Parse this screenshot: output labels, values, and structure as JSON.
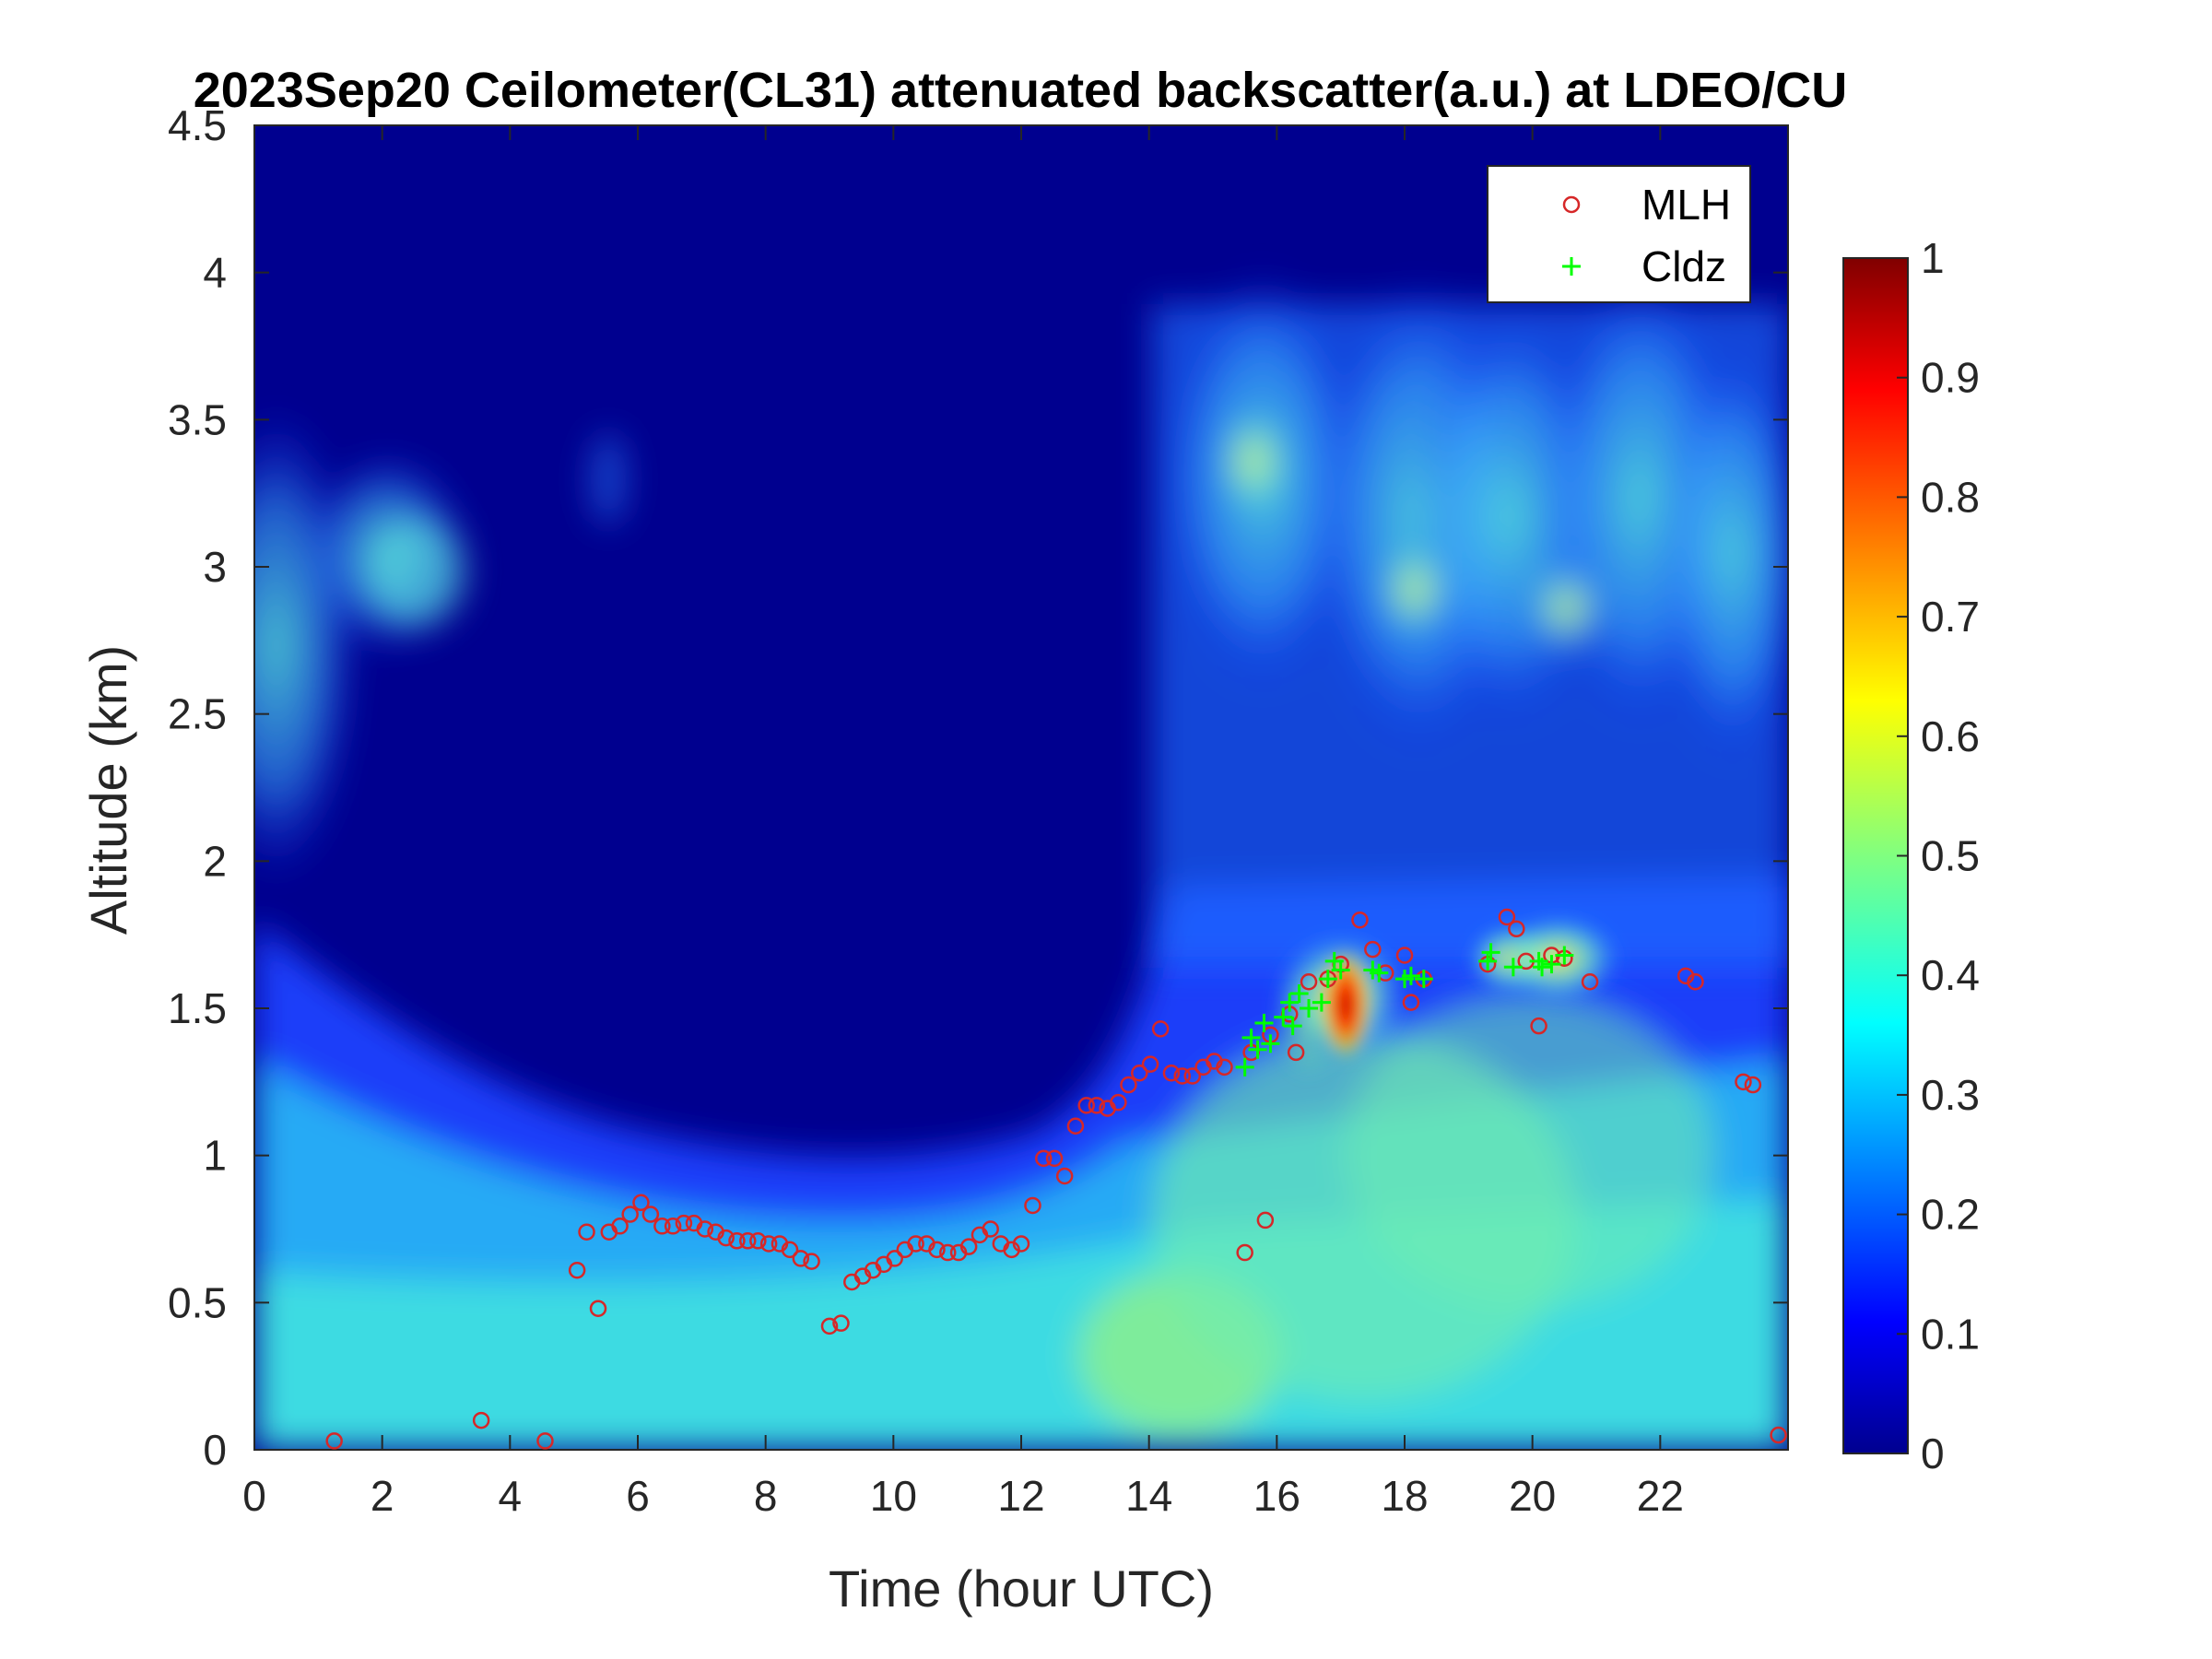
{
  "chart_data": {
    "type": "heatmap",
    "title": "2023Sep20 Ceilometer(CL31) attenuated backscatter(a.u.) at LDEO/CU",
    "xlabel": "Time (hour UTC)",
    "ylabel": "Altitude (km)",
    "xlim": [
      0,
      24
    ],
    "ylim": [
      0,
      4.5
    ],
    "x_ticks": [
      "0",
      "2",
      "4",
      "6",
      "8",
      "10",
      "12",
      "14",
      "16",
      "18",
      "20",
      "22"
    ],
    "y_ticks": [
      "0",
      "0.5",
      "1",
      "1.5",
      "2",
      "2.5",
      "3",
      "3.5",
      "4",
      "4.5"
    ],
    "colorbar": {
      "colormap": "jet",
      "range": [
        0,
        1
      ],
      "ticks": [
        "0",
        "0.1",
        "0.2",
        "0.3",
        "0.4",
        "0.5",
        "0.6",
        "0.7",
        "0.8",
        "0.9",
        "1"
      ]
    },
    "legend": {
      "placement": "top-right"
    },
    "series": [
      {
        "name": "MLH",
        "marker": "circle",
        "color": "#d62728",
        "points": [
          [
            1.25,
            0.03
          ],
          [
            3.55,
            0.1
          ],
          [
            4.55,
            0.03
          ],
          [
            5.05,
            0.61
          ],
          [
            5.2,
            0.74
          ],
          [
            5.38,
            0.48
          ],
          [
            5.55,
            0.74
          ],
          [
            5.72,
            0.76
          ],
          [
            5.88,
            0.8
          ],
          [
            6.05,
            0.84
          ],
          [
            6.2,
            0.8
          ],
          [
            6.38,
            0.76
          ],
          [
            6.55,
            0.76
          ],
          [
            6.72,
            0.77
          ],
          [
            6.88,
            0.77
          ],
          [
            7.05,
            0.75
          ],
          [
            7.22,
            0.74
          ],
          [
            7.38,
            0.72
          ],
          [
            7.55,
            0.71
          ],
          [
            7.72,
            0.71
          ],
          [
            7.88,
            0.71
          ],
          [
            8.05,
            0.7
          ],
          [
            8.22,
            0.7
          ],
          [
            8.38,
            0.68
          ],
          [
            8.55,
            0.65
          ],
          [
            8.72,
            0.64
          ],
          [
            9.0,
            0.42
          ],
          [
            9.18,
            0.43
          ],
          [
            9.35,
            0.57
          ],
          [
            9.52,
            0.59
          ],
          [
            9.68,
            0.61
          ],
          [
            9.85,
            0.63
          ],
          [
            10.02,
            0.65
          ],
          [
            10.18,
            0.68
          ],
          [
            10.35,
            0.7
          ],
          [
            10.52,
            0.7
          ],
          [
            10.68,
            0.68
          ],
          [
            10.85,
            0.67
          ],
          [
            11.02,
            0.67
          ],
          [
            11.18,
            0.69
          ],
          [
            11.35,
            0.73
          ],
          [
            11.52,
            0.75
          ],
          [
            11.68,
            0.7
          ],
          [
            11.85,
            0.68
          ],
          [
            12.0,
            0.7
          ],
          [
            12.18,
            0.83
          ],
          [
            12.35,
            0.99
          ],
          [
            12.52,
            0.99
          ],
          [
            12.68,
            0.93
          ],
          [
            12.85,
            1.1
          ],
          [
            13.02,
            1.17
          ],
          [
            13.18,
            1.17
          ],
          [
            13.35,
            1.16
          ],
          [
            13.52,
            1.18
          ],
          [
            13.68,
            1.24
          ],
          [
            13.85,
            1.28
          ],
          [
            14.02,
            1.31
          ],
          [
            14.18,
            1.43
          ],
          [
            14.35,
            1.28
          ],
          [
            14.52,
            1.27
          ],
          [
            14.68,
            1.27
          ],
          [
            14.85,
            1.3
          ],
          [
            15.02,
            1.32
          ],
          [
            15.18,
            1.3
          ],
          [
            15.5,
            0.67
          ],
          [
            15.6,
            1.35
          ],
          [
            15.82,
            0.78
          ],
          [
            15.9,
            1.41
          ],
          [
            16.2,
            1.48
          ],
          [
            16.3,
            1.35
          ],
          [
            16.5,
            1.59
          ],
          [
            16.8,
            1.6
          ],
          [
            17.0,
            1.65
          ],
          [
            17.3,
            1.8
          ],
          [
            17.5,
            1.7
          ],
          [
            17.7,
            1.62
          ],
          [
            18.0,
            1.68
          ],
          [
            18.1,
            1.52
          ],
          [
            18.3,
            1.6
          ],
          [
            19.3,
            1.65
          ],
          [
            19.6,
            1.81
          ],
          [
            19.75,
            1.77
          ],
          [
            19.9,
            1.66
          ],
          [
            20.1,
            1.44
          ],
          [
            20.3,
            1.68
          ],
          [
            20.5,
            1.67
          ],
          [
            20.9,
            1.59
          ],
          [
            22.4,
            1.61
          ],
          [
            22.55,
            1.59
          ],
          [
            23.3,
            1.25
          ],
          [
            23.45,
            1.24
          ],
          [
            23.85,
            0.05
          ]
        ]
      },
      {
        "name": "Cldz",
        "marker": "plus",
        "color": "#00ff00",
        "points": [
          [
            15.5,
            1.3
          ],
          [
            15.6,
            1.4
          ],
          [
            15.7,
            1.36
          ],
          [
            15.8,
            1.45
          ],
          [
            15.9,
            1.38
          ],
          [
            16.1,
            1.47
          ],
          [
            16.2,
            1.52
          ],
          [
            16.25,
            1.44
          ],
          [
            16.35,
            1.55
          ],
          [
            16.5,
            1.5
          ],
          [
            16.7,
            1.52
          ],
          [
            16.8,
            1.6
          ],
          [
            16.9,
            1.66
          ],
          [
            17.0,
            1.63
          ],
          [
            17.5,
            1.63
          ],
          [
            17.6,
            1.62
          ],
          [
            18.0,
            1.6
          ],
          [
            18.1,
            1.61
          ],
          [
            18.3,
            1.6
          ],
          [
            19.3,
            1.66
          ],
          [
            19.35,
            1.69
          ],
          [
            19.7,
            1.64
          ],
          [
            20.1,
            1.66
          ],
          [
            20.15,
            1.64
          ],
          [
            20.3,
            1.65
          ],
          [
            20.5,
            1.68
          ]
        ]
      }
    ]
  }
}
